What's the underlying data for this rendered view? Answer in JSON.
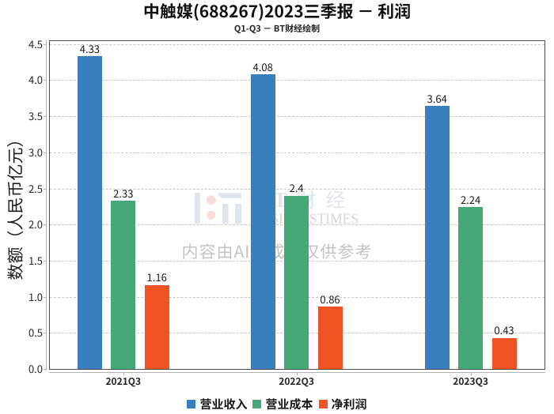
{
  "chart_data": {
    "type": "bar",
    "title": "中触媒(688267)2023三季报 － 利润",
    "subtitle": "Q1-Q3 － BT财经绘制",
    "ylabel": "数额（人民币亿元）",
    "xlabel": "",
    "categories": [
      "2021Q3",
      "2022Q3",
      "2023Q3"
    ],
    "series": [
      {
        "name": "营业收入",
        "color": "#3780bd",
        "values": [
          4.33,
          4.08,
          3.64
        ]
      },
      {
        "name": "营业成本",
        "color": "#45a876",
        "values": [
          2.33,
          2.4,
          2.24
        ]
      },
      {
        "name": "净利润",
        "color": "#f05323",
        "values": [
          1.16,
          0.86,
          0.43
        ]
      }
    ],
    "ylim": [
      0,
      4.55
    ],
    "yticks": [
      0,
      0.5,
      1,
      1.5,
      2,
      2.5,
      3,
      3.5,
      4,
      4.5
    ],
    "grid": "horizontal-dashed",
    "legend_position": "bottom-center",
    "bar_value_labels": true
  },
  "watermark": {
    "logo_text": "B T 财 经",
    "logo_subtext": "BUSINESSTIMES",
    "disclaimer": "内容由AI生成，仅供参考",
    "icon_colors": {
      "blue": "#dee5ef",
      "pink": "#f8ddd8"
    }
  }
}
